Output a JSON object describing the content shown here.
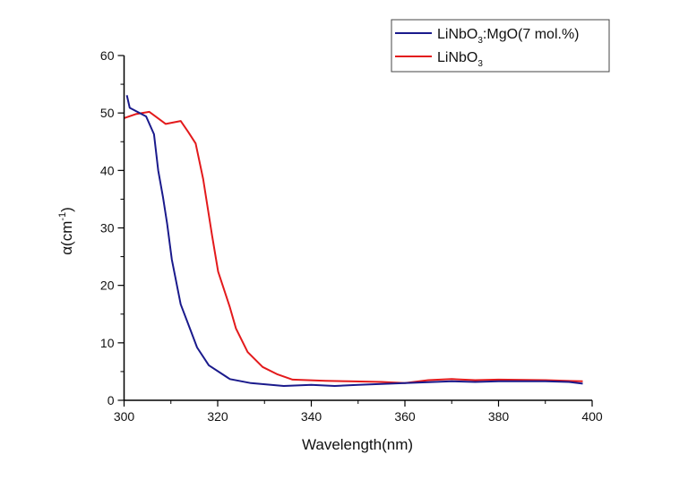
{
  "chart_data": {
    "type": "line",
    "title": "",
    "xlabel": "Wavelength(nm)",
    "ylabel": "α(cm",
    "ylabel_sup": "-1",
    "ylabel_end": ")",
    "xlim": [
      300,
      400
    ],
    "ylim": [
      0,
      60
    ],
    "xticks": [
      300,
      320,
      340,
      360,
      380,
      400
    ],
    "yticks": [
      0,
      10,
      20,
      30,
      40,
      50,
      60
    ],
    "grid": false,
    "legend_position": "top-right",
    "series": [
      {
        "name": "LiNbO3:MgO(7 mol.%)",
        "legend_main": "LiNbO",
        "legend_sub": "3",
        "legend_rest": ":MgO(7 mol.%)",
        "color": "#1a1a8c",
        "x": [
          300.6,
          301.2,
          304.7,
          306.4,
          307.3,
          308.3,
          309.2,
          310.2,
          312.1,
          314.3,
          315.6,
          318.1,
          322.6,
          327.1,
          334.1,
          340,
          345,
          350,
          360,
          370,
          375,
          380,
          390,
          395,
          398
        ],
        "y": [
          53.1,
          50.9,
          49.4,
          46.3,
          40.0,
          35.4,
          30.7,
          24.5,
          16.7,
          12.0,
          9.2,
          6.1,
          3.7,
          3.0,
          2.5,
          2.7,
          2.5,
          2.7,
          3.0,
          3.3,
          3.2,
          3.3,
          3.3,
          3.2,
          2.9
        ]
      },
      {
        "name": "LiNbO3",
        "legend_main": "LiNbO",
        "legend_sub": "3",
        "legend_rest": "",
        "color": "#e31a1c",
        "x": [
          300,
          302.5,
          305.4,
          308.9,
          312.1,
          313.7,
          315.3,
          316.9,
          318.8,
          320.1,
          322.6,
          323.9,
          326.4,
          329.6,
          332.8,
          336,
          343,
          348.1,
          355,
          360,
          365,
          370,
          375,
          380,
          390,
          398
        ],
        "y": [
          49.1,
          49.8,
          50.2,
          48.1,
          48.6,
          46.7,
          44.7,
          38.5,
          28.7,
          22.4,
          16.2,
          12.5,
          8.4,
          5.8,
          4.5,
          3.6,
          3.4,
          3.3,
          3.2,
          3.0,
          3.5,
          3.7,
          3.5,
          3.6,
          3.5,
          3.3
        ]
      }
    ]
  }
}
